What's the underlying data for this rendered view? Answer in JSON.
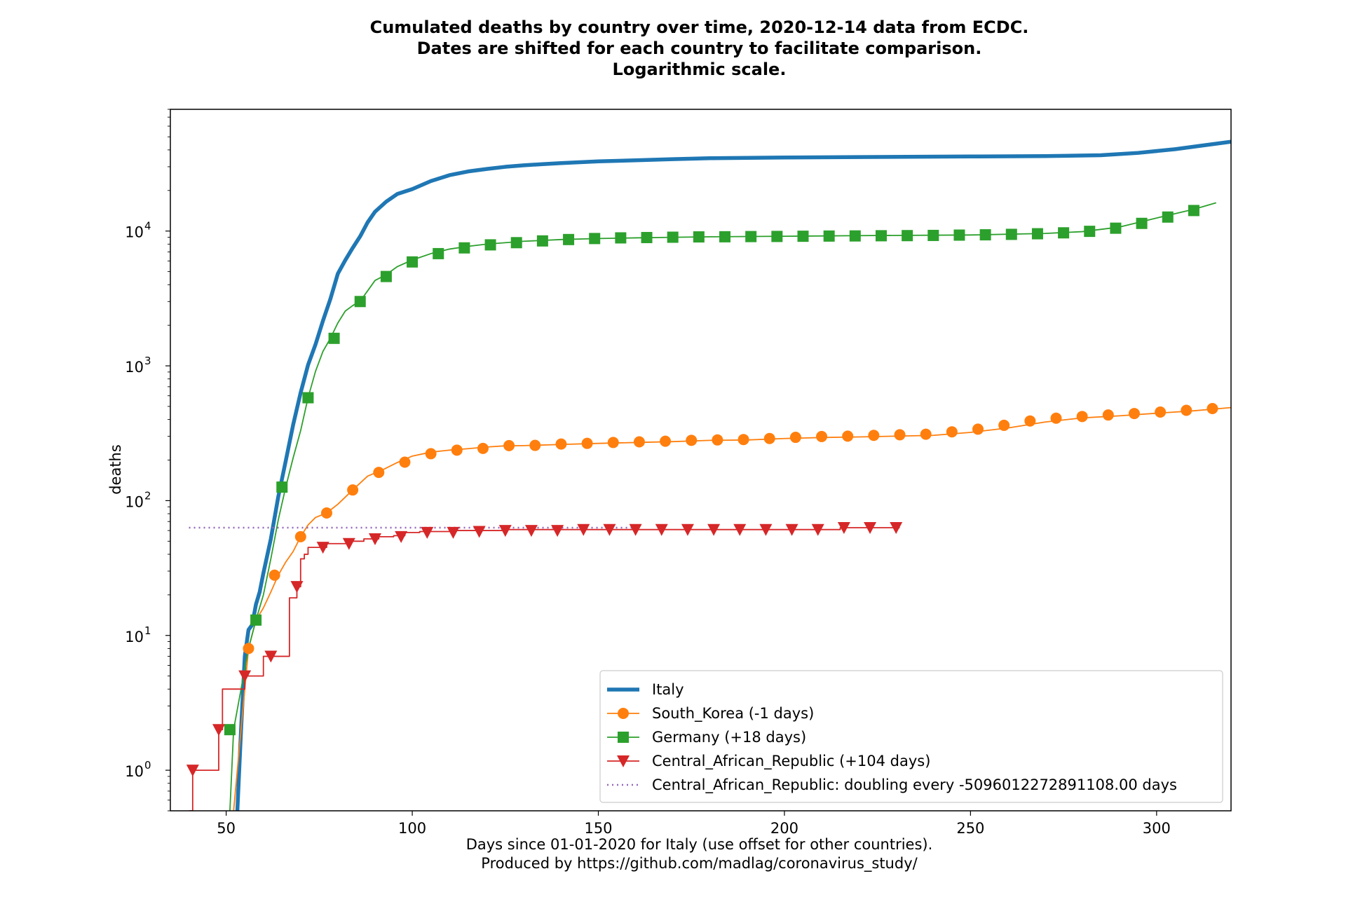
{
  "title": {
    "line1": "Cumulated deaths by country over time, 2020-12-14 data from ECDC.",
    "line2": "Dates are shifted for each country to facilitate comparison.",
    "line3": "Logarithmic scale."
  },
  "xlabel": {
    "line1": "Days since 01-01-2020 for Italy (use offset for other countries).",
    "line2": "Produced by https://github.com/madlag/coronavirus_study/"
  },
  "ylabel": "deaths",
  "chart_data": {
    "type": "line",
    "yscale": "log",
    "xlim": [
      35,
      320
    ],
    "ylim": [
      0.5,
      80000
    ],
    "xticks": [
      50,
      100,
      150,
      200,
      250,
      300
    ],
    "yticks": [
      {
        "value": 1,
        "base": "10",
        "exp": "0"
      },
      {
        "value": 10,
        "base": "10",
        "exp": "1"
      },
      {
        "value": 100,
        "base": "10",
        "exp": "2"
      },
      {
        "value": 1000,
        "base": "10",
        "exp": "3"
      },
      {
        "value": 10000,
        "base": "10",
        "exp": "4"
      }
    ],
    "legend_position": "lower-right",
    "series": [
      {
        "name": "Italy",
        "color": "#1f77b4",
        "marker": "none",
        "x": [
          53,
          54,
          55,
          56,
          57,
          58,
          59,
          60,
          62,
          64,
          66,
          68,
          70,
          72,
          74,
          76,
          78,
          80,
          82,
          84,
          86,
          88,
          90,
          93,
          96,
          100,
          105,
          110,
          115,
          120,
          125,
          130,
          135,
          140,
          150,
          160,
          170,
          180,
          200,
          220,
          250,
          270,
          285,
          295,
          305,
          312,
          320
        ],
        "y": [
          0.5,
          2,
          7,
          11,
          12,
          17,
          21,
          29,
          52,
          107,
          197,
          366,
          631,
          1016,
          1441,
          2158,
          3135,
          4825,
          6077,
          7503,
          9134,
          11591,
          13915,
          16523,
          18849,
          20465,
          23480,
          25969,
          27682,
          28884,
          29958,
          30739,
          31368,
          31908,
          32877,
          33506,
          34167,
          34708,
          35129,
          35368,
          35758,
          36000,
          36500,
          38000,
          40500,
          43000,
          46000
        ]
      },
      {
        "name": "South_Korea (-1 days)",
        "color": "#ff7f0e",
        "marker": "circle",
        "x": [
          52,
          54,
          56,
          58,
          60,
          62,
          64,
          66,
          68,
          70,
          72,
          74,
          77,
          80,
          84,
          88,
          92,
          96,
          100,
          105,
          110,
          115,
          120,
          125,
          130,
          140,
          150,
          160,
          170,
          180,
          190,
          200,
          210,
          220,
          230,
          240,
          250,
          260,
          270,
          280,
          290,
          300,
          310,
          320
        ],
        "y": [
          0.5,
          2,
          8,
          13,
          16,
          21,
          28,
          35,
          42,
          54,
          66,
          75,
          81,
          94,
          120,
          152,
          169,
          192,
          214,
          229,
          237,
          243,
          250,
          255,
          256,
          261,
          266,
          270,
          274,
          280,
          282,
          289,
          294,
          297,
          301,
          305,
          321,
          346,
          383,
          411,
          426,
          445,
          464,
          490
        ]
      },
      {
        "name": "Germany (+18 days)",
        "color": "#2ca02c",
        "marker": "square",
        "x": [
          51,
          52,
          54,
          56,
          58,
          60,
          62,
          64,
          66,
          68,
          70,
          72,
          74,
          76,
          78,
          80,
          82,
          84,
          86,
          88,
          90,
          93,
          96,
          100,
          105,
          110,
          115,
          120,
          130,
          140,
          150,
          160,
          170,
          180,
          200,
          220,
          250,
          270,
          280,
          290,
          300,
          310,
          316
        ],
        "y": [
          0.5,
          2,
          4,
          8,
          13,
          20,
          37,
          72,
          126,
          208,
          330,
          580,
          910,
          1280,
          1600,
          2080,
          2550,
          2800,
          3020,
          3600,
          4300,
          4750,
          5450,
          6100,
          6800,
          7350,
          7700,
          8000,
          8400,
          8650,
          8800,
          8900,
          8990,
          9070,
          9150,
          9250,
          9350,
          9600,
          9900,
          10700,
          12500,
          14500,
          16200
        ]
      },
      {
        "name": "Central_African_Republic (+104 days)",
        "color": "#d62728",
        "marker": "triangle-down",
        "step": true,
        "x": [
          40,
          41,
          48,
          49,
          55,
          60,
          62,
          67,
          69,
          70,
          71,
          72,
          77,
          83,
          87,
          91,
          95,
          98,
          102,
          110,
          125,
          150,
          175,
          200,
          215,
          225,
          231
        ],
        "y": [
          0.5,
          1,
          2,
          4,
          5,
          7,
          7,
          19,
          23,
          37,
          40,
          45,
          48,
          50,
          52,
          54,
          55,
          58,
          59,
          60,
          61,
          61,
          61,
          61,
          63,
          63,
          63
        ]
      },
      {
        "name": "Central_African_Republic: doubling every -5096012272891108.00 days",
        "color": "#9467bd",
        "marker": "none",
        "dashed": true,
        "x": [
          40,
          160
        ],
        "y": [
          63,
          63
        ]
      }
    ],
    "markers": [
      {
        "series": 1,
        "x": [
          56,
          63,
          70,
          77,
          84,
          91,
          98,
          105,
          112,
          119,
          126,
          133,
          140,
          147,
          154,
          161,
          168,
          175,
          182,
          189,
          196,
          203,
          210,
          217,
          224,
          231,
          238,
          245,
          252,
          259,
          266,
          273,
          280,
          287,
          294,
          301,
          308,
          315
        ],
        "y": [
          8,
          28,
          54,
          81,
          120,
          162,
          193,
          223,
          237,
          244,
          256,
          257,
          263,
          266,
          270,
          273,
          276,
          280,
          282,
          284,
          289,
          295,
          299,
          301,
          305,
          308,
          311,
          324,
          339,
          362,
          390,
          409,
          421,
          432,
          443,
          454,
          468,
          482
        ]
      },
      {
        "series": 2,
        "x": [
          51,
          58,
          65,
          72,
          79,
          86,
          93,
          100,
          107,
          114,
          121,
          128,
          135,
          142,
          149,
          156,
          163,
          170,
          177,
          184,
          191,
          198,
          205,
          212,
          219,
          226,
          233,
          240,
          247,
          254,
          261,
          268,
          275,
          282,
          289,
          296,
          303,
          310
        ],
        "y": [
          2,
          13,
          126,
          580,
          1600,
          3000,
          4600,
          5900,
          6800,
          7500,
          7900,
          8200,
          8450,
          8650,
          8800,
          8900,
          8950,
          9000,
          9050,
          9070,
          9100,
          9120,
          9150,
          9180,
          9200,
          9230,
          9250,
          9280,
          9330,
          9380,
          9450,
          9550,
          9700,
          9950,
          10500,
          11400,
          12700,
          14200
        ]
      },
      {
        "series": 3,
        "x": [
          41,
          48,
          55,
          62,
          69,
          76,
          83,
          90,
          97,
          104,
          111,
          118,
          125,
          132,
          139,
          146,
          153,
          160,
          167,
          174,
          181,
          188,
          195,
          202,
          209,
          216,
          223,
          230
        ],
        "y": [
          1,
          2,
          5,
          7,
          23,
          45,
          48,
          52,
          54,
          58,
          58,
          59,
          60,
          60,
          60,
          61,
          61,
          61,
          61,
          61,
          61,
          61,
          61,
          61,
          61,
          63,
          63,
          63
        ]
      }
    ]
  }
}
